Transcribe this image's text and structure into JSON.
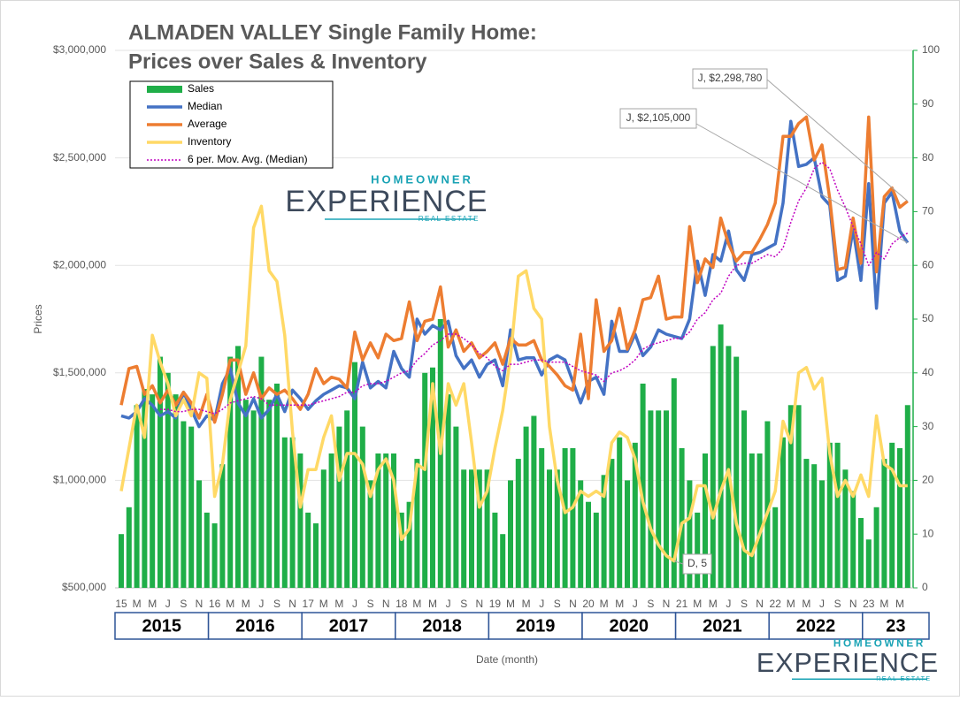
{
  "chart_data": {
    "type": "combo",
    "title": "ALMADEN VALLEY Single Family Home:",
    "subtitle": "Prices over Sales & Inventory",
    "y_label": "Prices",
    "x_label": "Date (month)",
    "categories": [
      "15",
      null,
      "M",
      null,
      "M",
      null,
      "J",
      null,
      "S",
      null,
      "N",
      null,
      "16",
      null,
      "M",
      null,
      "M",
      null,
      "J",
      null,
      "S",
      null,
      "N",
      null,
      "17",
      null,
      "M",
      null,
      "M",
      null,
      "J",
      null,
      "S",
      null,
      "N",
      null,
      "18",
      null,
      "M",
      null,
      "M",
      null,
      "J",
      null,
      "S",
      null,
      "N",
      null,
      "19",
      null,
      "M",
      null,
      "M",
      null,
      "J",
      null,
      "S",
      null,
      "N",
      null,
      "20",
      null,
      "M",
      null,
      "M",
      null,
      "J",
      null,
      "S",
      null,
      "N",
      null,
      "21",
      null,
      "M",
      null,
      "M",
      null,
      "J",
      null,
      "S",
      null,
      "N",
      null,
      "22",
      null,
      "M",
      null,
      "M",
      null,
      "J",
      null,
      "S",
      null,
      "N",
      null,
      "23",
      null,
      "M",
      null,
      "M",
      null
    ],
    "year_labels": [
      "2015",
      "2016",
      "2017",
      "2018",
      "2019",
      "2020",
      "2021",
      "2022",
      "23"
    ],
    "ylim": [
      500000,
      3000000
    ],
    "yticks": [
      {
        "value": 500000,
        "label": "$500,000"
      },
      {
        "value": 1000000,
        "label": "$1,000,000"
      },
      {
        "value": 1500000,
        "label": "$1,500,000"
      },
      {
        "value": 2000000,
        "label": "$2,000,000"
      },
      {
        "value": 2500000,
        "label": "$2,500,000"
      },
      {
        "value": 3000000,
        "label": "$3,000,000"
      }
    ],
    "y2lim": [
      0,
      100
    ],
    "y2ticks": [
      0,
      10,
      20,
      30,
      40,
      50,
      60,
      70,
      80,
      90,
      100
    ],
    "grid": true,
    "legend": "top-left",
    "series": [
      {
        "name": "Sales",
        "type": "bar",
        "axis": "y2",
        "color": "#1fae48",
        "values": [
          10,
          15,
          34,
          37,
          36,
          43,
          40,
          36,
          31,
          30,
          20,
          14,
          12,
          23,
          43,
          45,
          35,
          33,
          43,
          35,
          38,
          28,
          28,
          25,
          14,
          12,
          22,
          25,
          30,
          33,
          42,
          30,
          20,
          25,
          25,
          25,
          14,
          16,
          24,
          40,
          41,
          50,
          36,
          30,
          22,
          22,
          22,
          22,
          14,
          10,
          20,
          24,
          30,
          32,
          26,
          22,
          22,
          26,
          26,
          20,
          16,
          14,
          21,
          24,
          28,
          20,
          27,
          38,
          33,
          33,
          33,
          39,
          26,
          20,
          14,
          25,
          45,
          49,
          45,
          43,
          33,
          25,
          25,
          31,
          15,
          28,
          34,
          34,
          24,
          23,
          20,
          27,
          27,
          22,
          18,
          13,
          9,
          15,
          24,
          27,
          26,
          34
        ]
      },
      {
        "name": "Median",
        "type": "line",
        "color": "#4472c4",
        "values": [
          1300000,
          1290000,
          1320000,
          1380000,
          1350000,
          1300000,
          1320000,
          1290000,
          1410000,
          1330000,
          1250000,
          1300000,
          1280000,
          1450000,
          1520000,
          1360000,
          1300000,
          1380000,
          1290000,
          1330000,
          1400000,
          1320000,
          1420000,
          1380000,
          1330000,
          1370000,
          1400000,
          1420000,
          1440000,
          1430000,
          1380000,
          1550000,
          1430000,
          1460000,
          1430000,
          1600000,
          1520000,
          1480000,
          1750000,
          1680000,
          1720000,
          1700000,
          1740000,
          1580000,
          1520000,
          1560000,
          1480000,
          1540000,
          1560000,
          1440000,
          1700000,
          1560000,
          1570000,
          1570000,
          1490000,
          1560000,
          1580000,
          1560000,
          1460000,
          1360000,
          1460000,
          1480000,
          1400000,
          1740000,
          1600000,
          1600000,
          1680000,
          1580000,
          1620000,
          1700000,
          1680000,
          1670000,
          1660000,
          1750000,
          2020000,
          1860000,
          2050000,
          2020000,
          2160000,
          1980000,
          1930000,
          2050000,
          2060000,
          2080000,
          2100000,
          2290000,
          2670000,
          2460000,
          2470000,
          2500000,
          2320000,
          2280000,
          1930000,
          1950000,
          2170000,
          1930000,
          2380000,
          1800000,
          2290000,
          2340000,
          2160000,
          2105000
        ]
      },
      {
        "name": "Average",
        "type": "line",
        "color": "#ed7d31",
        "values": [
          1350000,
          1520000,
          1530000,
          1400000,
          1440000,
          1360000,
          1420000,
          1350000,
          1410000,
          1360000,
          1290000,
          1400000,
          1270000,
          1400000,
          1560000,
          1560000,
          1400000,
          1500000,
          1380000,
          1430000,
          1400000,
          1420000,
          1380000,
          1330000,
          1400000,
          1520000,
          1450000,
          1480000,
          1470000,
          1430000,
          1690000,
          1560000,
          1640000,
          1570000,
          1680000,
          1650000,
          1660000,
          1830000,
          1650000,
          1740000,
          1750000,
          1900000,
          1620000,
          1700000,
          1600000,
          1640000,
          1570000,
          1600000,
          1640000,
          1540000,
          1660000,
          1630000,
          1630000,
          1650000,
          1560000,
          1530000,
          1490000,
          1440000,
          1420000,
          1680000,
          1380000,
          1840000,
          1600000,
          1650000,
          1800000,
          1610000,
          1700000,
          1840000,
          1850000,
          1950000,
          1750000,
          1760000,
          1760000,
          2180000,
          1920000,
          2030000,
          1990000,
          2220000,
          2100000,
          2020000,
          2060000,
          2060000,
          2120000,
          2190000,
          2290000,
          2600000,
          2600000,
          2660000,
          2690000,
          2490000,
          2560000,
          2310000,
          1980000,
          1990000,
          2220000,
          2010000,
          2690000,
          1970000,
          2320000,
          2360000,
          2270000,
          2298780
        ]
      },
      {
        "name": "Inventory",
        "type": "line",
        "axis": "y2",
        "color": "#ffd966",
        "values": [
          18,
          26,
          34,
          28,
          47,
          42,
          38,
          32,
          35,
          32,
          40,
          39,
          17,
          23,
          35,
          40,
          45,
          67,
          71,
          59,
          57,
          47,
          29,
          15,
          22,
          22,
          28,
          32,
          20,
          25,
          25,
          23,
          17,
          22,
          24,
          20,
          9,
          11,
          23,
          22,
          38,
          25,
          38,
          34,
          38,
          27,
          15,
          18,
          26,
          33,
          43,
          58,
          59,
          52,
          50,
          30,
          20,
          14,
          15,
          18,
          17,
          18,
          17,
          27,
          29,
          28,
          24,
          16,
          11,
          8,
          6,
          5,
          12,
          13,
          19,
          19,
          13,
          18,
          22,
          12,
          7,
          6,
          10,
          14,
          18,
          31,
          27,
          40,
          41,
          37,
          39,
          25,
          17,
          20,
          17,
          21,
          17,
          32,
          23,
          22,
          19,
          19
        ]
      },
      {
        "name": "6 per. Mov. Avg. (Median)",
        "type": "line",
        "dotted": true,
        "color": "#c000c0",
        "values": [
          null,
          null,
          null,
          null,
          null,
          1330000,
          1330000,
          1320000,
          1320000,
          1330000,
          1330000,
          1320000,
          1310000,
          1330000,
          1360000,
          1370000,
          1380000,
          1390000,
          1380000,
          1350000,
          1350000,
          1350000,
          1350000,
          1350000,
          1350000,
          1360000,
          1370000,
          1380000,
          1390000,
          1410000,
          1410000,
          1440000,
          1450000,
          1450000,
          1460000,
          1480000,
          1500000,
          1510000,
          1560000,
          1590000,
          1630000,
          1650000,
          1680000,
          1680000,
          1660000,
          1630000,
          1590000,
          1570000,
          1530000,
          1510000,
          1540000,
          1540000,
          1550000,
          1560000,
          1560000,
          1550000,
          1550000,
          1550000,
          1530000,
          1510000,
          1500000,
          1490000,
          1460000,
          1500000,
          1510000,
          1530000,
          1560000,
          1610000,
          1630000,
          1640000,
          1650000,
          1660000,
          1660000,
          1690000,
          1750000,
          1780000,
          1840000,
          1870000,
          1950000,
          2000000,
          2010000,
          2010000,
          2030000,
          2050000,
          2040000,
          2080000,
          2200000,
          2300000,
          2360000,
          2450000,
          2480000,
          2450000,
          2350000,
          2270000,
          2180000,
          2100000,
          2000000,
          2060000,
          2030000,
          2100000,
          2130000,
          2150000
        ]
      }
    ],
    "annotations": [
      {
        "text": "J, $2,298,780"
      },
      {
        "text": "J, $2,105,000"
      },
      {
        "text": "D, 5"
      }
    ]
  },
  "logo": {
    "top": "HOMEOWNER",
    "main": "EXPERIENCE",
    "sub": "REAL ESTATE"
  }
}
